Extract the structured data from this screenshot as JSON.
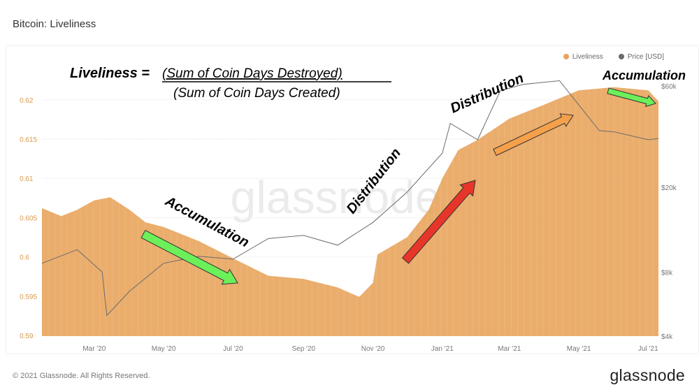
{
  "title": "Bitcoin: Liveliness",
  "footer": "© 2021 Glassnode. All Rights Reserved.",
  "brand": "glassnode",
  "watermark": "glassnode",
  "formula": {
    "lhs": "Liveliness =",
    "numerator": "(Sum of Coin Days Destroyed)",
    "denominator": "(Sum of Coin Days Created)"
  },
  "annotations": [
    {
      "text": "Accumulation",
      "color": "#000000"
    },
    {
      "text": "Distribution",
      "color": "#000000"
    },
    {
      "text": "Distribution",
      "color": "#000000"
    },
    {
      "text": "Accumulation",
      "color": "#000000"
    }
  ],
  "arrows": [
    {
      "name": "accumulation-arrow-2020",
      "color": "#6cf05a"
    },
    {
      "name": "distribution-arrow-red",
      "color": "#e8352a"
    },
    {
      "name": "distribution-arrow-orange",
      "color": "#f5a04a"
    },
    {
      "name": "accumulation-arrow-2021",
      "color": "#6cf05a"
    }
  ],
  "chart_data": {
    "type": "area+line",
    "title": "Bitcoin: Liveliness",
    "legend": {
      "position": "top-right",
      "entries": [
        "Liveliness",
        "Price [USD]"
      ]
    },
    "x_range": [
      "2020-01-15",
      "2021-07-10"
    ],
    "x_ticks": [
      {
        "date": "2020-03-01",
        "label": "Mar '20"
      },
      {
        "date": "2020-05-01",
        "label": "May '20"
      },
      {
        "date": "2020-07-01",
        "label": "Jul '20"
      },
      {
        "date": "2020-09-01",
        "label": "Sep '20"
      },
      {
        "date": "2020-11-01",
        "label": "Nov '20"
      },
      {
        "date": "2021-01-01",
        "label": "Jan '21"
      },
      {
        "date": "2021-03-01",
        "label": "Mar '21"
      },
      {
        "date": "2021-05-01",
        "label": "May '21"
      },
      {
        "date": "2021-07-01",
        "label": "Jul '21"
      }
    ],
    "y_left": {
      "scale": "linear",
      "range": [
        0.59,
        0.6235
      ],
      "ticks": [
        0.59,
        0.595,
        0.6,
        0.605,
        0.61,
        0.615,
        0.62
      ],
      "labels": [
        "0.59",
        "0.595",
        "0.6",
        "0.605",
        "0.61",
        "0.615",
        "0.62"
      ],
      "color": "#d99a4e"
    },
    "y_right": {
      "scale": "log",
      "range": [
        4000,
        66000
      ],
      "ticks": [
        4000,
        8000,
        20000,
        60000
      ],
      "labels": [
        "$4k",
        "$8k",
        "$20k",
        "$60k"
      ]
    },
    "series": [
      {
        "name": "Liveliness",
        "axis": "left",
        "color": "#e8a45c",
        "points": [
          [
            "2020-01-15",
            0.6062
          ],
          [
            "2020-02-01",
            0.6052
          ],
          [
            "2020-02-15",
            0.606
          ],
          [
            "2020-03-01",
            0.6072
          ],
          [
            "2020-03-15",
            0.6076
          ],
          [
            "2020-04-01",
            0.606
          ],
          [
            "2020-04-15",
            0.6044
          ],
          [
            "2020-05-01",
            0.6038
          ],
          [
            "2020-06-01",
            0.602
          ],
          [
            "2020-07-01",
            0.5998
          ],
          [
            "2020-08-01",
            0.5976
          ],
          [
            "2020-09-01",
            0.5972
          ],
          [
            "2020-10-01",
            0.5961
          ],
          [
            "2020-10-20",
            0.5949
          ],
          [
            "2020-11-01",
            0.5967
          ],
          [
            "2020-11-05",
            0.6003
          ],
          [
            "2020-12-01",
            0.6025
          ],
          [
            "2020-12-20",
            0.606
          ],
          [
            "2021-01-01",
            0.61
          ],
          [
            "2021-01-15",
            0.6136
          ],
          [
            "2021-02-01",
            0.6149
          ],
          [
            "2021-03-01",
            0.6176
          ],
          [
            "2021-04-01",
            0.6194
          ],
          [
            "2021-05-01",
            0.6212
          ],
          [
            "2021-06-01",
            0.6216
          ],
          [
            "2021-07-01",
            0.6212
          ],
          [
            "2021-07-10",
            0.6198
          ]
        ]
      },
      {
        "name": "Price [USD]",
        "axis": "right",
        "color": "#6b6b6b",
        "points": [
          [
            "2020-01-15",
            8800
          ],
          [
            "2020-02-15",
            10200
          ],
          [
            "2020-03-08",
            8000
          ],
          [
            "2020-03-12",
            5000
          ],
          [
            "2020-04-01",
            6500
          ],
          [
            "2020-05-01",
            8800
          ],
          [
            "2020-06-01",
            9500
          ],
          [
            "2020-07-01",
            9200
          ],
          [
            "2020-08-01",
            11500
          ],
          [
            "2020-09-01",
            11900
          ],
          [
            "2020-10-01",
            10700
          ],
          [
            "2020-11-01",
            13700
          ],
          [
            "2020-12-01",
            19000
          ],
          [
            "2021-01-01",
            29000
          ],
          [
            "2021-01-08",
            40000
          ],
          [
            "2021-02-01",
            33500
          ],
          [
            "2021-02-21",
            57000
          ],
          [
            "2021-03-13",
            61000
          ],
          [
            "2021-04-14",
            63500
          ],
          [
            "2021-05-19",
            37000
          ],
          [
            "2021-06-01",
            36500
          ],
          [
            "2021-07-01",
            33500
          ],
          [
            "2021-07-10",
            34000
          ]
        ]
      }
    ]
  }
}
